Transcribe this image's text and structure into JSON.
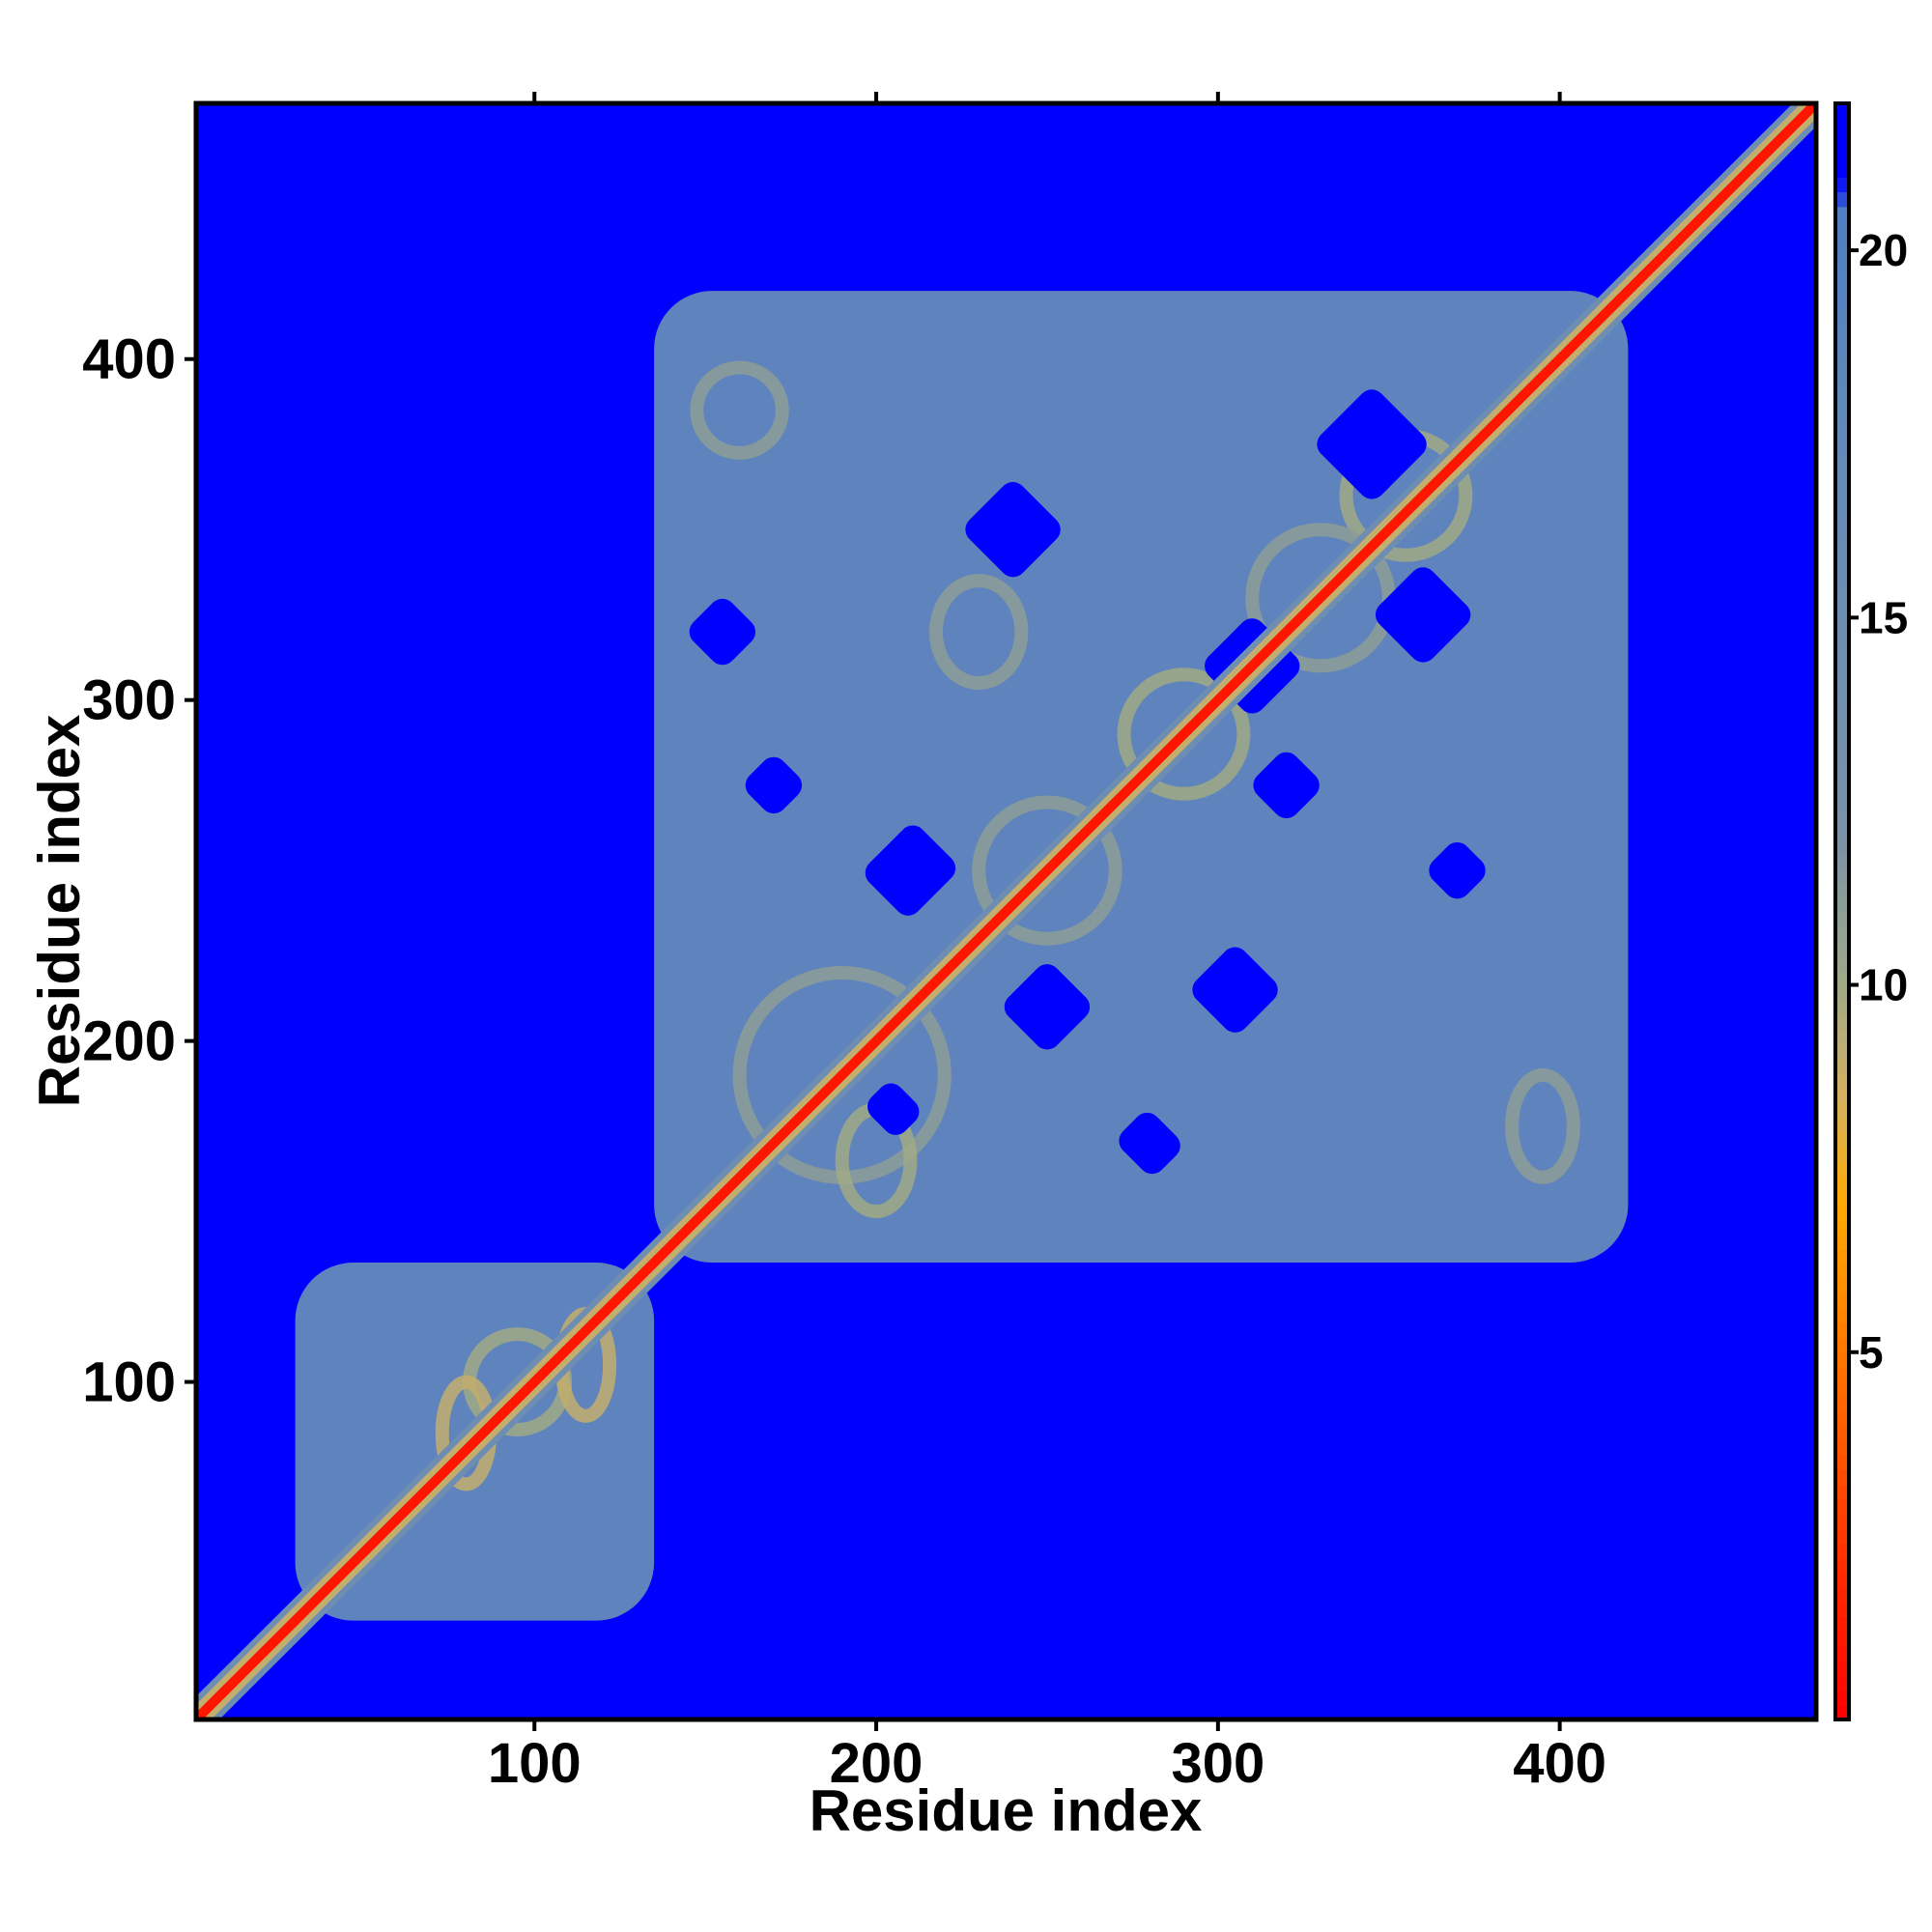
{
  "chart_data": {
    "type": "heatmap",
    "title": "",
    "xlabel": "Residue index",
    "ylabel": "Residue index",
    "xlim": [
      1,
      475
    ],
    "ylim": [
      1,
      475
    ],
    "x_ticks": [
      100,
      200,
      300,
      400
    ],
    "y_ticks": [
      100,
      200,
      300,
      400
    ],
    "colorbar": {
      "ticks": [
        5,
        10,
        15,
        20
      ],
      "range": [
        0,
        22
      ],
      "stops": [
        {
          "value": 0,
          "color": "#ff0000"
        },
        {
          "value": 2,
          "color": "#ff2a00"
        },
        {
          "value": 4.5,
          "color": "#ff6a00"
        },
        {
          "value": 7,
          "color": "#ffaa00"
        },
        {
          "value": 8.5,
          "color": "#d4b060"
        },
        {
          "value": 10,
          "color": "#a0aa86"
        },
        {
          "value": 12,
          "color": "#7a92a8"
        },
        {
          "value": 18,
          "color": "#5f88bb"
        },
        {
          "value": 20.5,
          "color": "#4d7fc2"
        },
        {
          "value": 21,
          "color": "#0000ff"
        },
        {
          "value": 22,
          "color": "#0000ff"
        }
      ]
    },
    "background_value": 22,
    "diagonal_band": {
      "start": 1,
      "end": 475
    },
    "domains": [
      {
        "start": 30,
        "end": 135,
        "fill": 17
      },
      {
        "start": 135,
        "end": 420,
        "fill": 17
      }
    ],
    "contact_features": [
      {
        "x": 95,
        "y": 100,
        "w": 28,
        "h": 28,
        "value": 10
      },
      {
        "x": 80,
        "y": 85,
        "w": 14,
        "h": 30,
        "value": 9
      },
      {
        "x": 115,
        "y": 105,
        "w": 14,
        "h": 30,
        "value": 9
      },
      {
        "x": 160,
        "y": 385,
        "w": 25,
        "h": 25,
        "value": 11
      },
      {
        "x": 395,
        "y": 175,
        "w": 18,
        "h": 30,
        "value": 11
      },
      {
        "x": 230,
        "y": 320,
        "w": 25,
        "h": 30,
        "value": 11
      },
      {
        "x": 290,
        "y": 290,
        "w": 35,
        "h": 35,
        "value": 10
      },
      {
        "x": 250,
        "y": 250,
        "w": 40,
        "h": 40,
        "value": 11
      },
      {
        "x": 190,
        "y": 190,
        "w": 60,
        "h": 60,
        "value": 11
      },
      {
        "x": 355,
        "y": 360,
        "w": 35,
        "h": 35,
        "value": 10
      },
      {
        "x": 200,
        "y": 165,
        "w": 20,
        "h": 30,
        "value": 10
      },
      {
        "x": 330,
        "y": 330,
        "w": 40,
        "h": 40,
        "value": 11
      }
    ],
    "holes": [
      {
        "x": 240,
        "y": 350,
        "w": 22,
        "h": 22
      },
      {
        "x": 345,
        "y": 375,
        "w": 25,
        "h": 25
      },
      {
        "x": 360,
        "y": 325,
        "w": 22,
        "h": 22
      },
      {
        "x": 250,
        "y": 210,
        "w": 20,
        "h": 20
      },
      {
        "x": 210,
        "y": 250,
        "w": 20,
        "h": 22
      },
      {
        "x": 305,
        "y": 215,
        "w": 20,
        "h": 20
      },
      {
        "x": 310,
        "y": 310,
        "w": 22,
        "h": 22
      },
      {
        "x": 155,
        "y": 320,
        "w": 16,
        "h": 16
      },
      {
        "x": 170,
        "y": 275,
        "w": 14,
        "h": 14
      },
      {
        "x": 370,
        "y": 250,
        "w": 14,
        "h": 14
      },
      {
        "x": 320,
        "y": 275,
        "w": 16,
        "h": 16
      },
      {
        "x": 280,
        "y": 170,
        "w": 16,
        "h": 14
      },
      {
        "x": 205,
        "y": 180,
        "w": 14,
        "h": 12
      }
    ]
  }
}
